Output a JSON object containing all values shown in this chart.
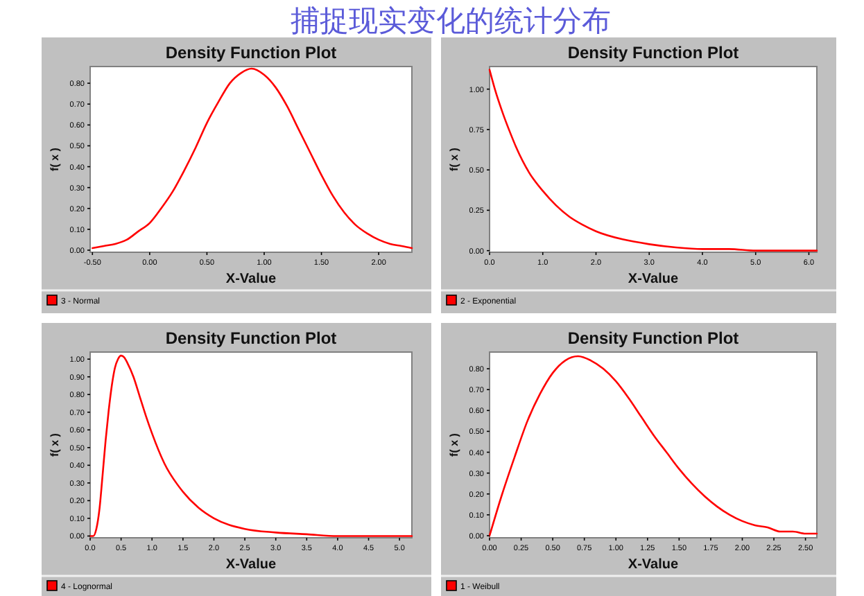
{
  "chart_data": [
    {
      "type": "other",
      "title": "捕捉现实变化的统计分布"
    },
    {
      "type": "line",
      "title": "Density Function Plot",
      "xlabel": "X-Value",
      "ylabel": "f( x )",
      "legend": "bottom",
      "x": [
        -0.5,
        -0.4,
        -0.3,
        -0.2,
        -0.1,
        0,
        0.1,
        0.2,
        0.3,
        0.4,
        0.5,
        0.6,
        0.7,
        0.8,
        0.89,
        1.0,
        1.1,
        1.2,
        1.3,
        1.4,
        1.5,
        1.6,
        1.7,
        1.8,
        1.9,
        2.0,
        2.1,
        2.2,
        2.29
      ],
      "series": [
        {
          "name": "3 - Normal",
          "color": "#ff0000",
          "values": [
            0.01,
            0.02,
            0.03,
            0.05,
            0.09,
            0.13,
            0.2,
            0.28,
            0.38,
            0.49,
            0.61,
            0.71,
            0.8,
            0.85,
            0.87,
            0.84,
            0.78,
            0.69,
            0.58,
            0.47,
            0.36,
            0.26,
            0.18,
            0.12,
            0.08,
            0.05,
            0.03,
            0.02,
            0.01
          ]
        }
      ],
      "xlim": [
        -0.52,
        2.29
      ],
      "ylim": [
        -0.01,
        0.88
      ],
      "xticks": [
        {
          "value": -0.5,
          "label": "-0.50"
        },
        {
          "value": 0,
          "label": "0.00"
        },
        {
          "value": 0.5,
          "label": "0.50"
        },
        {
          "value": 1,
          "label": "1.00"
        },
        {
          "value": 1.5,
          "label": "1.50"
        },
        {
          "value": 2,
          "label": "2.00"
        }
      ],
      "yticks": [
        {
          "value": 0,
          "label": "0.00"
        },
        {
          "value": 0.1,
          "label": "0.10"
        },
        {
          "value": 0.2,
          "label": "0.20"
        },
        {
          "value": 0.3,
          "label": "0.30"
        },
        {
          "value": 0.4,
          "label": "0.40"
        },
        {
          "value": 0.5,
          "label": "0.50"
        },
        {
          "value": 0.6,
          "label": "0.60"
        },
        {
          "value": 0.7,
          "label": "0.70"
        },
        {
          "value": 0.8,
          "label": "0.80"
        }
      ]
    },
    {
      "type": "line",
      "title": "Density Function Plot",
      "xlabel": "X-Value",
      "ylabel": "f( x )",
      "legend": "bottom",
      "x": [
        0,
        0.1,
        0.25,
        0.4,
        0.5,
        0.75,
        1,
        1.25,
        1.5,
        1.75,
        2,
        2.5,
        3,
        3.5,
        4,
        4.5,
        5,
        5.5,
        6,
        6.15
      ],
      "series": [
        {
          "name": "2 - Exponential",
          "color": "#ff0000",
          "values": [
            1.12,
            1.0,
            0.85,
            0.72,
            0.64,
            0.48,
            0.37,
            0.28,
            0.21,
            0.16,
            0.12,
            0.07,
            0.04,
            0.02,
            0.01,
            0.01,
            0.0,
            0.0,
            0.0,
            0.0
          ]
        }
      ],
      "xlim": [
        0,
        6.15
      ],
      "ylim": [
        -0.01,
        1.14
      ],
      "xticks": [
        {
          "value": 0,
          "label": "0.0"
        },
        {
          "value": 1,
          "label": "1.0"
        },
        {
          "value": 2,
          "label": "2.0"
        },
        {
          "value": 3,
          "label": "3.0"
        },
        {
          "value": 4,
          "label": "4.0"
        },
        {
          "value": 5,
          "label": "5.0"
        },
        {
          "value": 6,
          "label": "6.0"
        }
      ],
      "yticks": [
        {
          "value": 0,
          "label": "0.00"
        },
        {
          "value": 0.25,
          "label": "0.25"
        },
        {
          "value": 0.5,
          "label": "0.50"
        },
        {
          "value": 0.75,
          "label": "0.75"
        },
        {
          "value": 1,
          "label": "1.00"
        }
      ]
    },
    {
      "type": "line",
      "title": "Density Function Plot",
      "xlabel": "X-Value",
      "ylabel": "f( x )",
      "legend": "bottom",
      "x": [
        0,
        0.05,
        0.1,
        0.15,
        0.2,
        0.25,
        0.3,
        0.35,
        0.4,
        0.45,
        0.5,
        0.55,
        0.6,
        0.7,
        0.8,
        0.9,
        1.0,
        1.2,
        1.5,
        1.75,
        2.0,
        2.5,
        3.0,
        3.5,
        4.0,
        4.5,
        5.0,
        5.2
      ],
      "series": [
        {
          "name": "4 - Lognormal",
          "color": "#ff0000",
          "values": [
            0,
            0.0,
            0.04,
            0.15,
            0.34,
            0.54,
            0.71,
            0.85,
            0.95,
            1.0,
            1.02,
            1.01,
            0.98,
            0.9,
            0.79,
            0.68,
            0.58,
            0.41,
            0.25,
            0.16,
            0.1,
            0.04,
            0.02,
            0.01,
            0.0,
            0.0,
            0.0,
            0.0
          ]
        }
      ],
      "xlim": [
        0,
        5.2
      ],
      "ylim": [
        -0.01,
        1.04
      ],
      "xticks": [
        {
          "value": 0,
          "label": "0.0"
        },
        {
          "value": 0.5,
          "label": "0.5"
        },
        {
          "value": 1,
          "label": "1.0"
        },
        {
          "value": 1.5,
          "label": "1.5"
        },
        {
          "value": 2,
          "label": "2.0"
        },
        {
          "value": 2.5,
          "label": "2.5"
        },
        {
          "value": 3,
          "label": "3.0"
        },
        {
          "value": 3.5,
          "label": "3.5"
        },
        {
          "value": 4,
          "label": "4.0"
        },
        {
          "value": 4.5,
          "label": "4.5"
        },
        {
          "value": 5,
          "label": "5.0"
        }
      ],
      "yticks": [
        {
          "value": 0,
          "label": "0.00"
        },
        {
          "value": 0.1,
          "label": "0.10"
        },
        {
          "value": 0.2,
          "label": "0.20"
        },
        {
          "value": 0.3,
          "label": "0.30"
        },
        {
          "value": 0.4,
          "label": "0.40"
        },
        {
          "value": 0.5,
          "label": "0.50"
        },
        {
          "value": 0.6,
          "label": "0.60"
        },
        {
          "value": 0.7,
          "label": "0.70"
        },
        {
          "value": 0.8,
          "label": "0.80"
        },
        {
          "value": 0.9,
          "label": "0.90"
        },
        {
          "value": 1,
          "label": "1.00"
        }
      ]
    },
    {
      "type": "line",
      "title": "Density Function Plot",
      "xlabel": "X-Value",
      "ylabel": "f( x )",
      "legend": "bottom",
      "x": [
        0,
        0.1,
        0.2,
        0.3,
        0.4,
        0.5,
        0.6,
        0.7,
        0.8,
        0.9,
        1.0,
        1.1,
        1.2,
        1.3,
        1.4,
        1.5,
        1.6,
        1.7,
        1.8,
        1.9,
        2.0,
        2.1,
        2.2,
        2.3,
        2.4,
        2.5,
        2.59
      ],
      "series": [
        {
          "name": "1 - Weibull",
          "color": "#ff0000",
          "values": [
            0,
            0.2,
            0.38,
            0.55,
            0.68,
            0.78,
            0.84,
            0.86,
            0.84,
            0.8,
            0.74,
            0.66,
            0.57,
            0.48,
            0.4,
            0.32,
            0.25,
            0.19,
            0.14,
            0.1,
            0.07,
            0.05,
            0.04,
            0.02,
            0.02,
            0.01,
            0.01
          ]
        }
      ],
      "xlim": [
        0,
        2.59
      ],
      "ylim": [
        -0.01,
        0.88
      ],
      "xticks": [
        {
          "value": 0,
          "label": "0.00"
        },
        {
          "value": 0.25,
          "label": "0.25"
        },
        {
          "value": 0.5,
          "label": "0.50"
        },
        {
          "value": 0.75,
          "label": "0.75"
        },
        {
          "value": 1,
          "label": "1.00"
        },
        {
          "value": 1.25,
          "label": "1.25"
        },
        {
          "value": 1.5,
          "label": "1.50"
        },
        {
          "value": 1.75,
          "label": "1.75"
        },
        {
          "value": 2,
          "label": "2.00"
        },
        {
          "value": 2.25,
          "label": "2.25"
        },
        {
          "value": 2.5,
          "label": "2.50"
        }
      ],
      "yticks": [
        {
          "value": 0,
          "label": "0.00"
        },
        {
          "value": 0.1,
          "label": "0.10"
        },
        {
          "value": 0.2,
          "label": "0.20"
        },
        {
          "value": 0.3,
          "label": "0.30"
        },
        {
          "value": 0.4,
          "label": "0.40"
        },
        {
          "value": 0.5,
          "label": "0.50"
        },
        {
          "value": 0.6,
          "label": "0.60"
        },
        {
          "value": 0.7,
          "label": "0.70"
        },
        {
          "value": 0.8,
          "label": "0.80"
        }
      ]
    }
  ]
}
